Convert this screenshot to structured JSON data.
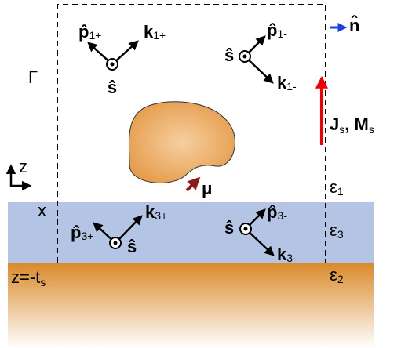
{
  "labels": {
    "p1p": {
      "base": "p̂",
      "sub": "1+"
    },
    "k1p": {
      "base": "k",
      "sub": "1+"
    },
    "s1p": {
      "base": "ŝ"
    },
    "s1m": {
      "base": "ŝ"
    },
    "p1m": {
      "base": "p̂",
      "sub": "1-"
    },
    "k1m": {
      "base": "k",
      "sub": "1-"
    },
    "n": {
      "base": "n̂"
    },
    "gamma": {
      "base": "Γ"
    },
    "js": {
      "base": "J",
      "sub": "s"
    },
    "comma": {
      "base": ", "
    },
    "ms": {
      "base": "M",
      "sub": "s"
    },
    "mu": {
      "base": "μ"
    },
    "z": {
      "base": "z"
    },
    "x": {
      "base": "x"
    },
    "eps1": {
      "base": "ε",
      "sub": "1"
    },
    "eps3": {
      "base": "ε",
      "sub": "3"
    },
    "eps2": {
      "base": "ε",
      "sub": "2"
    },
    "p3p": {
      "base": "p̂",
      "sub": "3+"
    },
    "k3p": {
      "base": "k",
      "sub": "3+"
    },
    "s3p": {
      "base": "ŝ"
    },
    "s3m": {
      "base": "ŝ"
    },
    "p3m": {
      "base": "p̂",
      "sub": "3-"
    },
    "k3m": {
      "base": "k",
      "sub": "3-"
    },
    "zts": {
      "base": "z=-t",
      "sub": "s"
    }
  }
}
